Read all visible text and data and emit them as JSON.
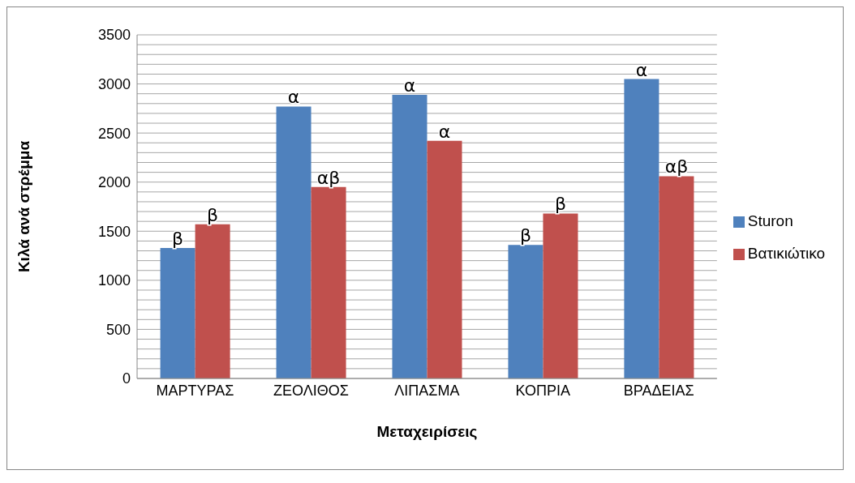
{
  "chart_data": {
    "type": "bar",
    "xlabel": "Μεταχειρίσεις",
    "ylabel": "Κιλά ανά στρέμμα",
    "categories": [
      "ΜΑΡΤΥΡΑΣ",
      "ΖΕΟΛΙΘΟΣ",
      "ΛΙΠΑΣΜΑ",
      "ΚΟΠΡΙΑ",
      "ΒΡΑΔΕΙΑΣ"
    ],
    "series": [
      {
        "name": "Sturon",
        "color": "#4f81bd",
        "values": [
          1330,
          2770,
          2890,
          1360,
          3050
        ],
        "value_labels": [
          "β",
          "α",
          "α",
          "β",
          "α"
        ]
      },
      {
        "name": "Βατικιώτικο",
        "color": "#c0504d",
        "values": [
          1570,
          1950,
          2420,
          1680,
          2060
        ],
        "value_labels": [
          "β",
          "αβ",
          "α",
          "β",
          "αβ"
        ]
      }
    ],
    "ylim": [
      0,
      3500
    ],
    "yticks": [
      0,
      {
        "value": 100,
        "label": null
      },
      {
        "value": 200,
        "label": null
      },
      {
        "value": 300,
        "label": null
      },
      {
        "value": 400,
        "label": null
      },
      500,
      {
        "value": 600,
        "label": null
      },
      {
        "value": 700,
        "label": null
      },
      {
        "value": 800,
        "label": null
      },
      {
        "value": 900,
        "label": null
      },
      1000,
      {
        "value": 1100,
        "label": null
      },
      {
        "value": 1200,
        "label": null
      },
      {
        "value": 1300,
        "label": null
      },
      {
        "value": 1400,
        "label": null
      },
      1500,
      {
        "value": 1600,
        "label": null
      },
      {
        "value": 1700,
        "label": null
      },
      {
        "value": 1800,
        "label": null
      },
      {
        "value": 1900,
        "label": null
      },
      2000,
      {
        "value": 2100,
        "label": null
      },
      {
        "value": 2200,
        "label": null
      },
      {
        "value": 2300,
        "label": null
      },
      {
        "value": 2400,
        "label": null
      },
      2500,
      {
        "value": 2600,
        "label": null
      },
      {
        "value": 2700,
        "label": null
      },
      {
        "value": 2800,
        "label": null
      },
      {
        "value": 2900,
        "label": null
      },
      3000,
      {
        "value": 3100,
        "label": null
      },
      {
        "value": 3200,
        "label": null
      },
      {
        "value": 3300,
        "label": null
      },
      {
        "value": 3400,
        "label": null
      },
      3500
    ],
    "grid": "y",
    "legend": "right"
  }
}
